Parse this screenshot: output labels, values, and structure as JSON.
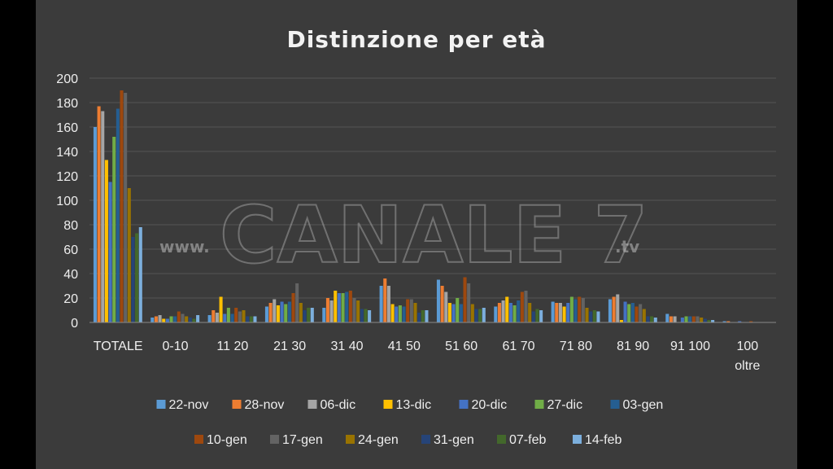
{
  "chart_data": {
    "type": "bar",
    "title": "Distinzione  per età",
    "ylim": [
      0,
      200
    ],
    "yticks": [
      0,
      20,
      40,
      60,
      80,
      100,
      120,
      140,
      160,
      180,
      200
    ],
    "grid": true,
    "legend_position": "bottom",
    "categories": [
      "TOTALE",
      "0-10",
      "11 20",
      "21 30",
      "31 40",
      "41 50",
      "51 60",
      "61 70",
      "71 80",
      "81 90",
      "91 100",
      "100 oltre"
    ],
    "series": [
      {
        "name": "22-nov",
        "color": "#5b9bd5",
        "values": [
          160,
          4,
          6,
          13,
          12,
          30,
          35,
          13,
          17,
          19,
          7,
          1
        ]
      },
      {
        "name": "28-nov",
        "color": "#ed7d31",
        "values": [
          177,
          5,
          10,
          16,
          20,
          36,
          30,
          16,
          16,
          21,
          5,
          1
        ]
      },
      {
        "name": "06-dic",
        "color": "#a5a5a5",
        "values": [
          173,
          6,
          8,
          19,
          18,
          30,
          25,
          18,
          16,
          23,
          5,
          0
        ]
      },
      {
        "name": "13-dic",
        "color": "#ffc000",
        "values": [
          133,
          3,
          21,
          14,
          26,
          15,
          16,
          21,
          13,
          2,
          0,
          0
        ]
      },
      {
        "name": "20-dic",
        "color": "#4472c4",
        "values": [
          115,
          3,
          7,
          17,
          24,
          13,
          15,
          16,
          16,
          17,
          4,
          1
        ]
      },
      {
        "name": "27-dic",
        "color": "#70ad47",
        "values": [
          152,
          5,
          12,
          15,
          24,
          14,
          20,
          14,
          21,
          15,
          5,
          0
        ]
      },
      {
        "name": "03-gen",
        "color": "#255e91",
        "values": [
          175,
          5,
          7,
          17,
          25,
          13,
          15,
          18,
          19,
          16,
          5,
          0
        ]
      },
      {
        "name": "10-gen",
        "color": "#9e480e",
        "values": [
          190,
          9,
          12,
          24,
          26,
          19,
          37,
          25,
          21,
          13,
          5,
          1
        ]
      },
      {
        "name": "17-gen",
        "color": "#636363",
        "values": [
          188,
          7,
          9,
          32,
          20,
          19,
          32,
          26,
          20,
          15,
          5,
          0
        ]
      },
      {
        "name": "24-gen",
        "color": "#997300",
        "values": [
          110,
          5,
          10,
          16,
          18,
          16,
          15,
          16,
          12,
          11,
          4,
          0
        ]
      },
      {
        "name": "31-gen",
        "color": "#264478",
        "values": [
          70,
          4,
          5,
          10,
          11,
          8,
          11,
          9,
          9,
          5,
          3,
          0
        ]
      },
      {
        "name": "07-feb",
        "color": "#43682b",
        "values": [
          73,
          3,
          5,
          12,
          11,
          10,
          11,
          11,
          10,
          5,
          2,
          0
        ]
      },
      {
        "name": "14-feb",
        "color": "#7cafdd",
        "values": [
          78,
          6,
          5,
          12,
          10,
          10,
          12,
          10,
          9,
          4,
          2,
          0
        ]
      }
    ]
  },
  "watermark": {
    "prefix": "www.",
    "brand": "CANALE 7",
    "suffix": ".tv"
  }
}
